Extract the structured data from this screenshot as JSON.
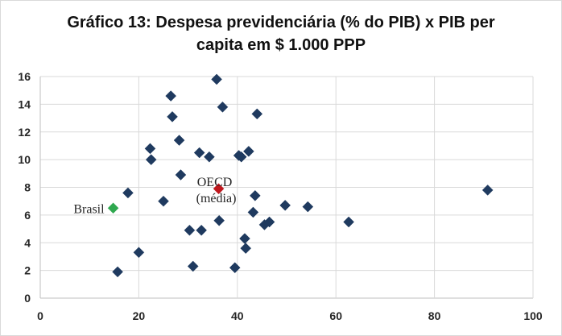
{
  "chart_data": {
    "type": "scatter",
    "title_line1": "Gráfico 13: Despesa previdenciária (% do PIB) x PIB per",
    "title_line2": "capita em $ 1.000 PPP",
    "xlabel": "",
    "ylabel": "",
    "xlim": [
      0,
      100
    ],
    "ylim": [
      0,
      16
    ],
    "x_ticks": [
      "0",
      "20",
      "40",
      "60",
      "80",
      "100"
    ],
    "y_ticks": [
      "0",
      "2",
      "4",
      "6",
      "8",
      "10",
      "12",
      "14",
      "16"
    ],
    "grid": true,
    "colors": {
      "default": "#1f3a5f",
      "brasil": "#2fa84f",
      "oecd": "#c0171d",
      "grid": "#d9d9d9"
    },
    "points": [
      {
        "x": 15.7,
        "y": 1.9
      },
      {
        "x": 17.8,
        "y": 7.6
      },
      {
        "x": 20.0,
        "y": 3.3
      },
      {
        "x": 22.3,
        "y": 10.8
      },
      {
        "x": 22.5,
        "y": 10.0
      },
      {
        "x": 25.0,
        "y": 7.0
      },
      {
        "x": 26.5,
        "y": 14.6
      },
      {
        "x": 26.8,
        "y": 13.1
      },
      {
        "x": 28.2,
        "y": 11.4
      },
      {
        "x": 28.5,
        "y": 8.9
      },
      {
        "x": 30.3,
        "y": 4.9
      },
      {
        "x": 31.0,
        "y": 2.3
      },
      {
        "x": 32.3,
        "y": 10.5
      },
      {
        "x": 32.7,
        "y": 4.9
      },
      {
        "x": 34.3,
        "y": 10.2
      },
      {
        "x": 35.8,
        "y": 15.8
      },
      {
        "x": 36.3,
        "y": 5.6
      },
      {
        "x": 37.0,
        "y": 13.8
      },
      {
        "x": 39.5,
        "y": 2.2
      },
      {
        "x": 40.3,
        "y": 10.3
      },
      {
        "x": 40.8,
        "y": 10.2
      },
      {
        "x": 41.5,
        "y": 4.3
      },
      {
        "x": 41.7,
        "y": 3.6
      },
      {
        "x": 42.3,
        "y": 10.6
      },
      {
        "x": 43.2,
        "y": 6.2
      },
      {
        "x": 43.6,
        "y": 7.4
      },
      {
        "x": 44.0,
        "y": 13.3
      },
      {
        "x": 45.5,
        "y": 5.3
      },
      {
        "x": 46.5,
        "y": 5.5
      },
      {
        "x": 49.7,
        "y": 6.7
      },
      {
        "x": 54.3,
        "y": 6.6
      },
      {
        "x": 62.6,
        "y": 5.5
      },
      {
        "x": 90.8,
        "y": 7.8
      }
    ],
    "highlighted": [
      {
        "label": "Brasil",
        "x": 14.8,
        "y": 6.5
      },
      {
        "label_line1": "OECD",
        "label_line2": "(média)",
        "x": 36.2,
        "y": 7.9
      }
    ]
  }
}
